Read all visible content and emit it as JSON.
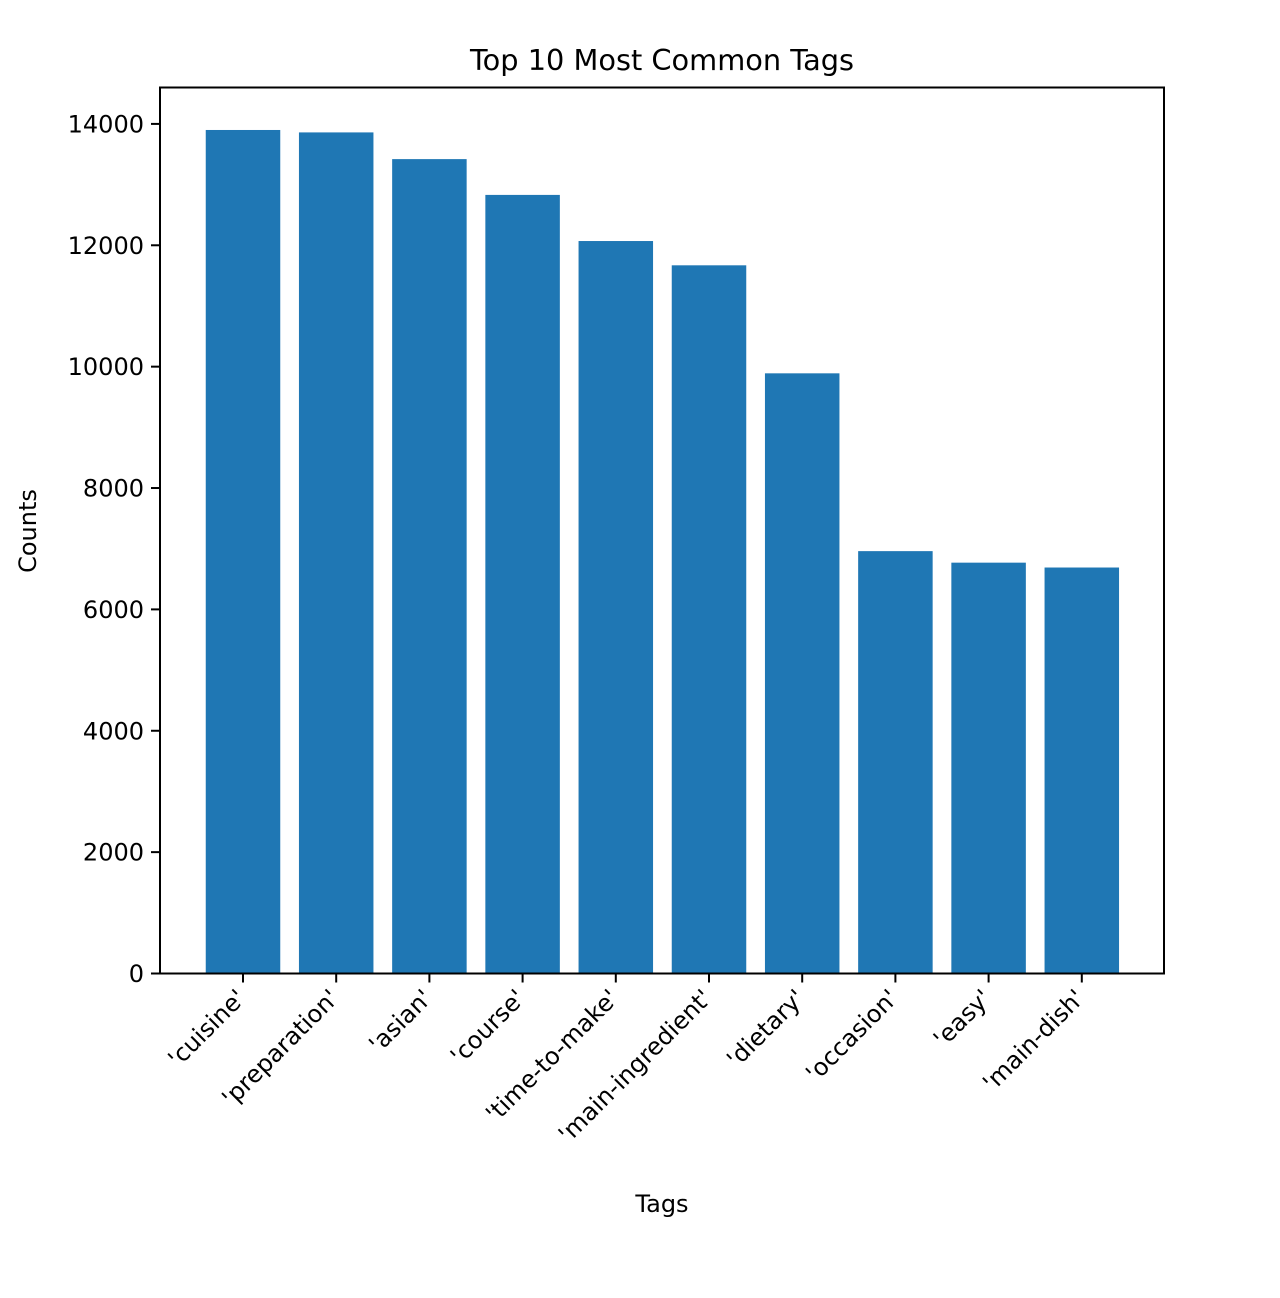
{
  "chart_data": {
    "type": "bar",
    "title": "Top 10 Most Common Tags",
    "xlabel": "Tags",
    "ylabel": "Counts",
    "categories": [
      "'cuisine'",
      "'preparation'",
      "'asian'",
      "'course'",
      "'time-to-make'",
      "'main-ingredient'",
      "'dietary'",
      "'occasion'",
      "'easy'",
      "'main-dish'"
    ],
    "values": [
      13900,
      13860,
      13420,
      12830,
      12070,
      11670,
      9890,
      6960,
      6770,
      6690
    ],
    "ylim": [
      0,
      14600
    ],
    "yticks": [
      0,
      2000,
      4000,
      6000,
      8000,
      10000,
      12000,
      14000
    ],
    "ytick_labels": [
      "0",
      "2000",
      "4000",
      "6000",
      "8000",
      "10000",
      "12000",
      "14000"
    ],
    "bar_color": "#1f77b4",
    "grid": false,
    "legend": "none"
  }
}
